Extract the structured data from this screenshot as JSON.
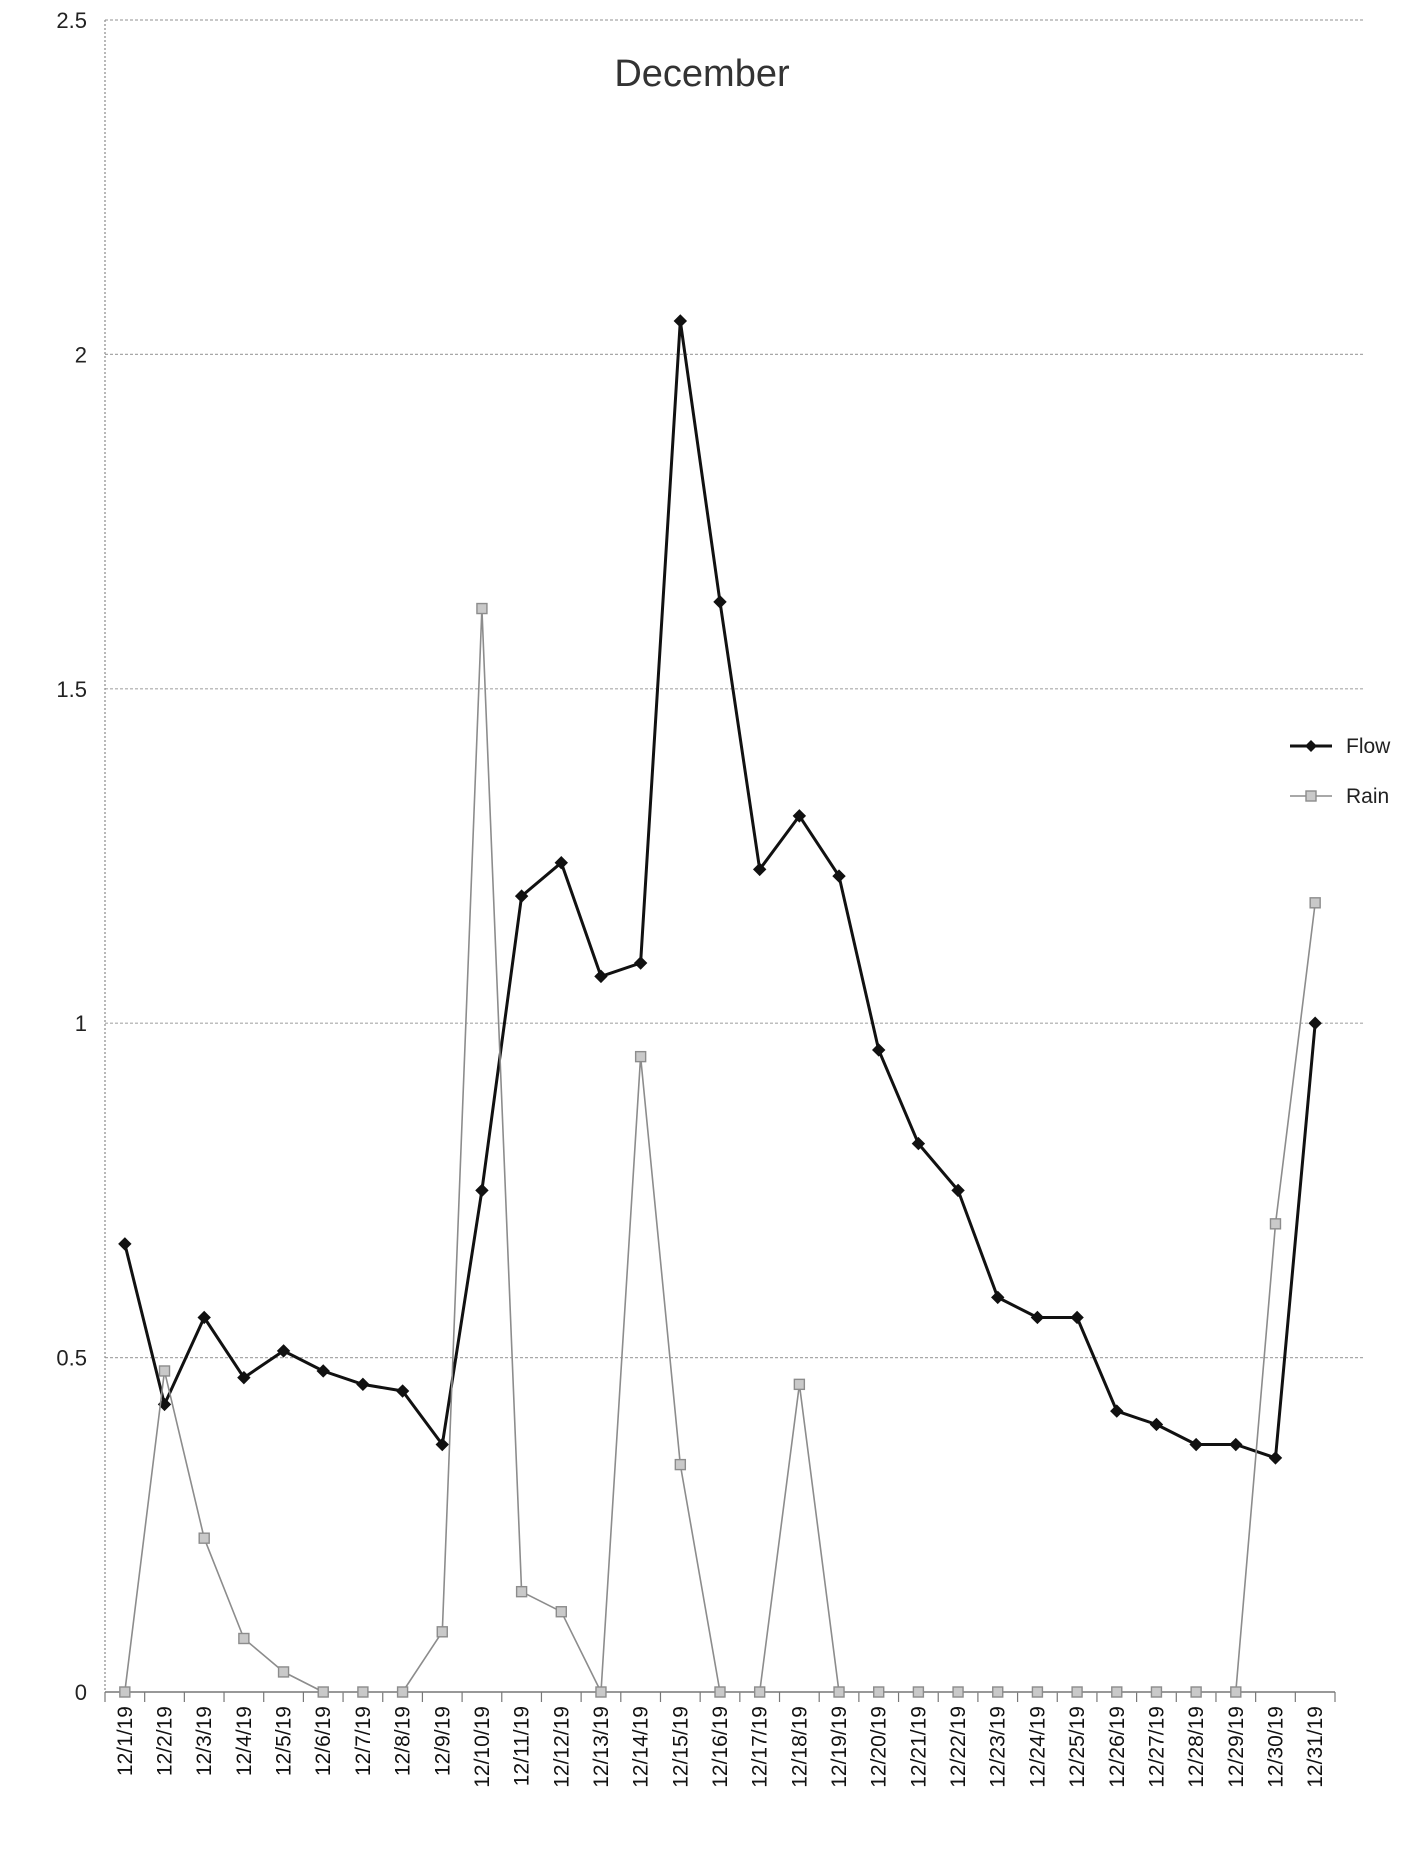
{
  "chart_data": {
    "type": "line",
    "title": "December",
    "xlabel": "",
    "ylabel": "",
    "ylim": [
      0,
      2.5
    ],
    "yticks": [
      "0",
      "0.5",
      "1",
      "1.5",
      "2",
      "2.5"
    ],
    "grid": true,
    "legend_position": "right",
    "categories": [
      "12/1/19",
      "12/2/19",
      "12/3/19",
      "12/4/19",
      "12/5/19",
      "12/6/19",
      "12/7/19",
      "12/8/19",
      "12/9/19",
      "12/10/19",
      "12/11/19",
      "12/12/19",
      "12/13/19",
      "12/14/19",
      "12/15/19",
      "12/16/19",
      "12/17/19",
      "12/18/19",
      "12/19/19",
      "12/20/19",
      "12/21/19",
      "12/22/19",
      "12/23/19",
      "12/24/19",
      "12/25/19",
      "12/26/19",
      "12/27/19",
      "12/28/19",
      "12/29/19",
      "12/30/19",
      "12/31/19"
    ],
    "series": [
      {
        "name": "Flow",
        "color": "#111111",
        "marker": "diamond",
        "values": [
          0.67,
          0.43,
          0.56,
          0.47,
          0.51,
          0.48,
          0.46,
          0.45,
          0.37,
          0.75,
          1.19,
          1.24,
          1.07,
          1.09,
          2.05,
          1.63,
          1.23,
          1.31,
          1.22,
          0.96,
          0.82,
          0.75,
          0.59,
          0.56,
          0.56,
          0.42,
          0.4,
          0.37,
          0.37,
          0.35,
          1.0
        ]
      },
      {
        "name": "Rain",
        "color": "#8c8c8c",
        "marker": "square",
        "values": [
          0.0,
          0.48,
          0.23,
          0.08,
          0.03,
          0.0,
          0.0,
          0.0,
          0.09,
          1.62,
          0.15,
          0.12,
          0.0,
          0.95,
          0.34,
          0.0,
          0.0,
          0.46,
          0.0,
          0.0,
          0.0,
          0.0,
          0.0,
          0.0,
          0.0,
          0.0,
          0.0,
          0.0,
          0.0,
          0.7,
          1.18
        ]
      }
    ]
  }
}
